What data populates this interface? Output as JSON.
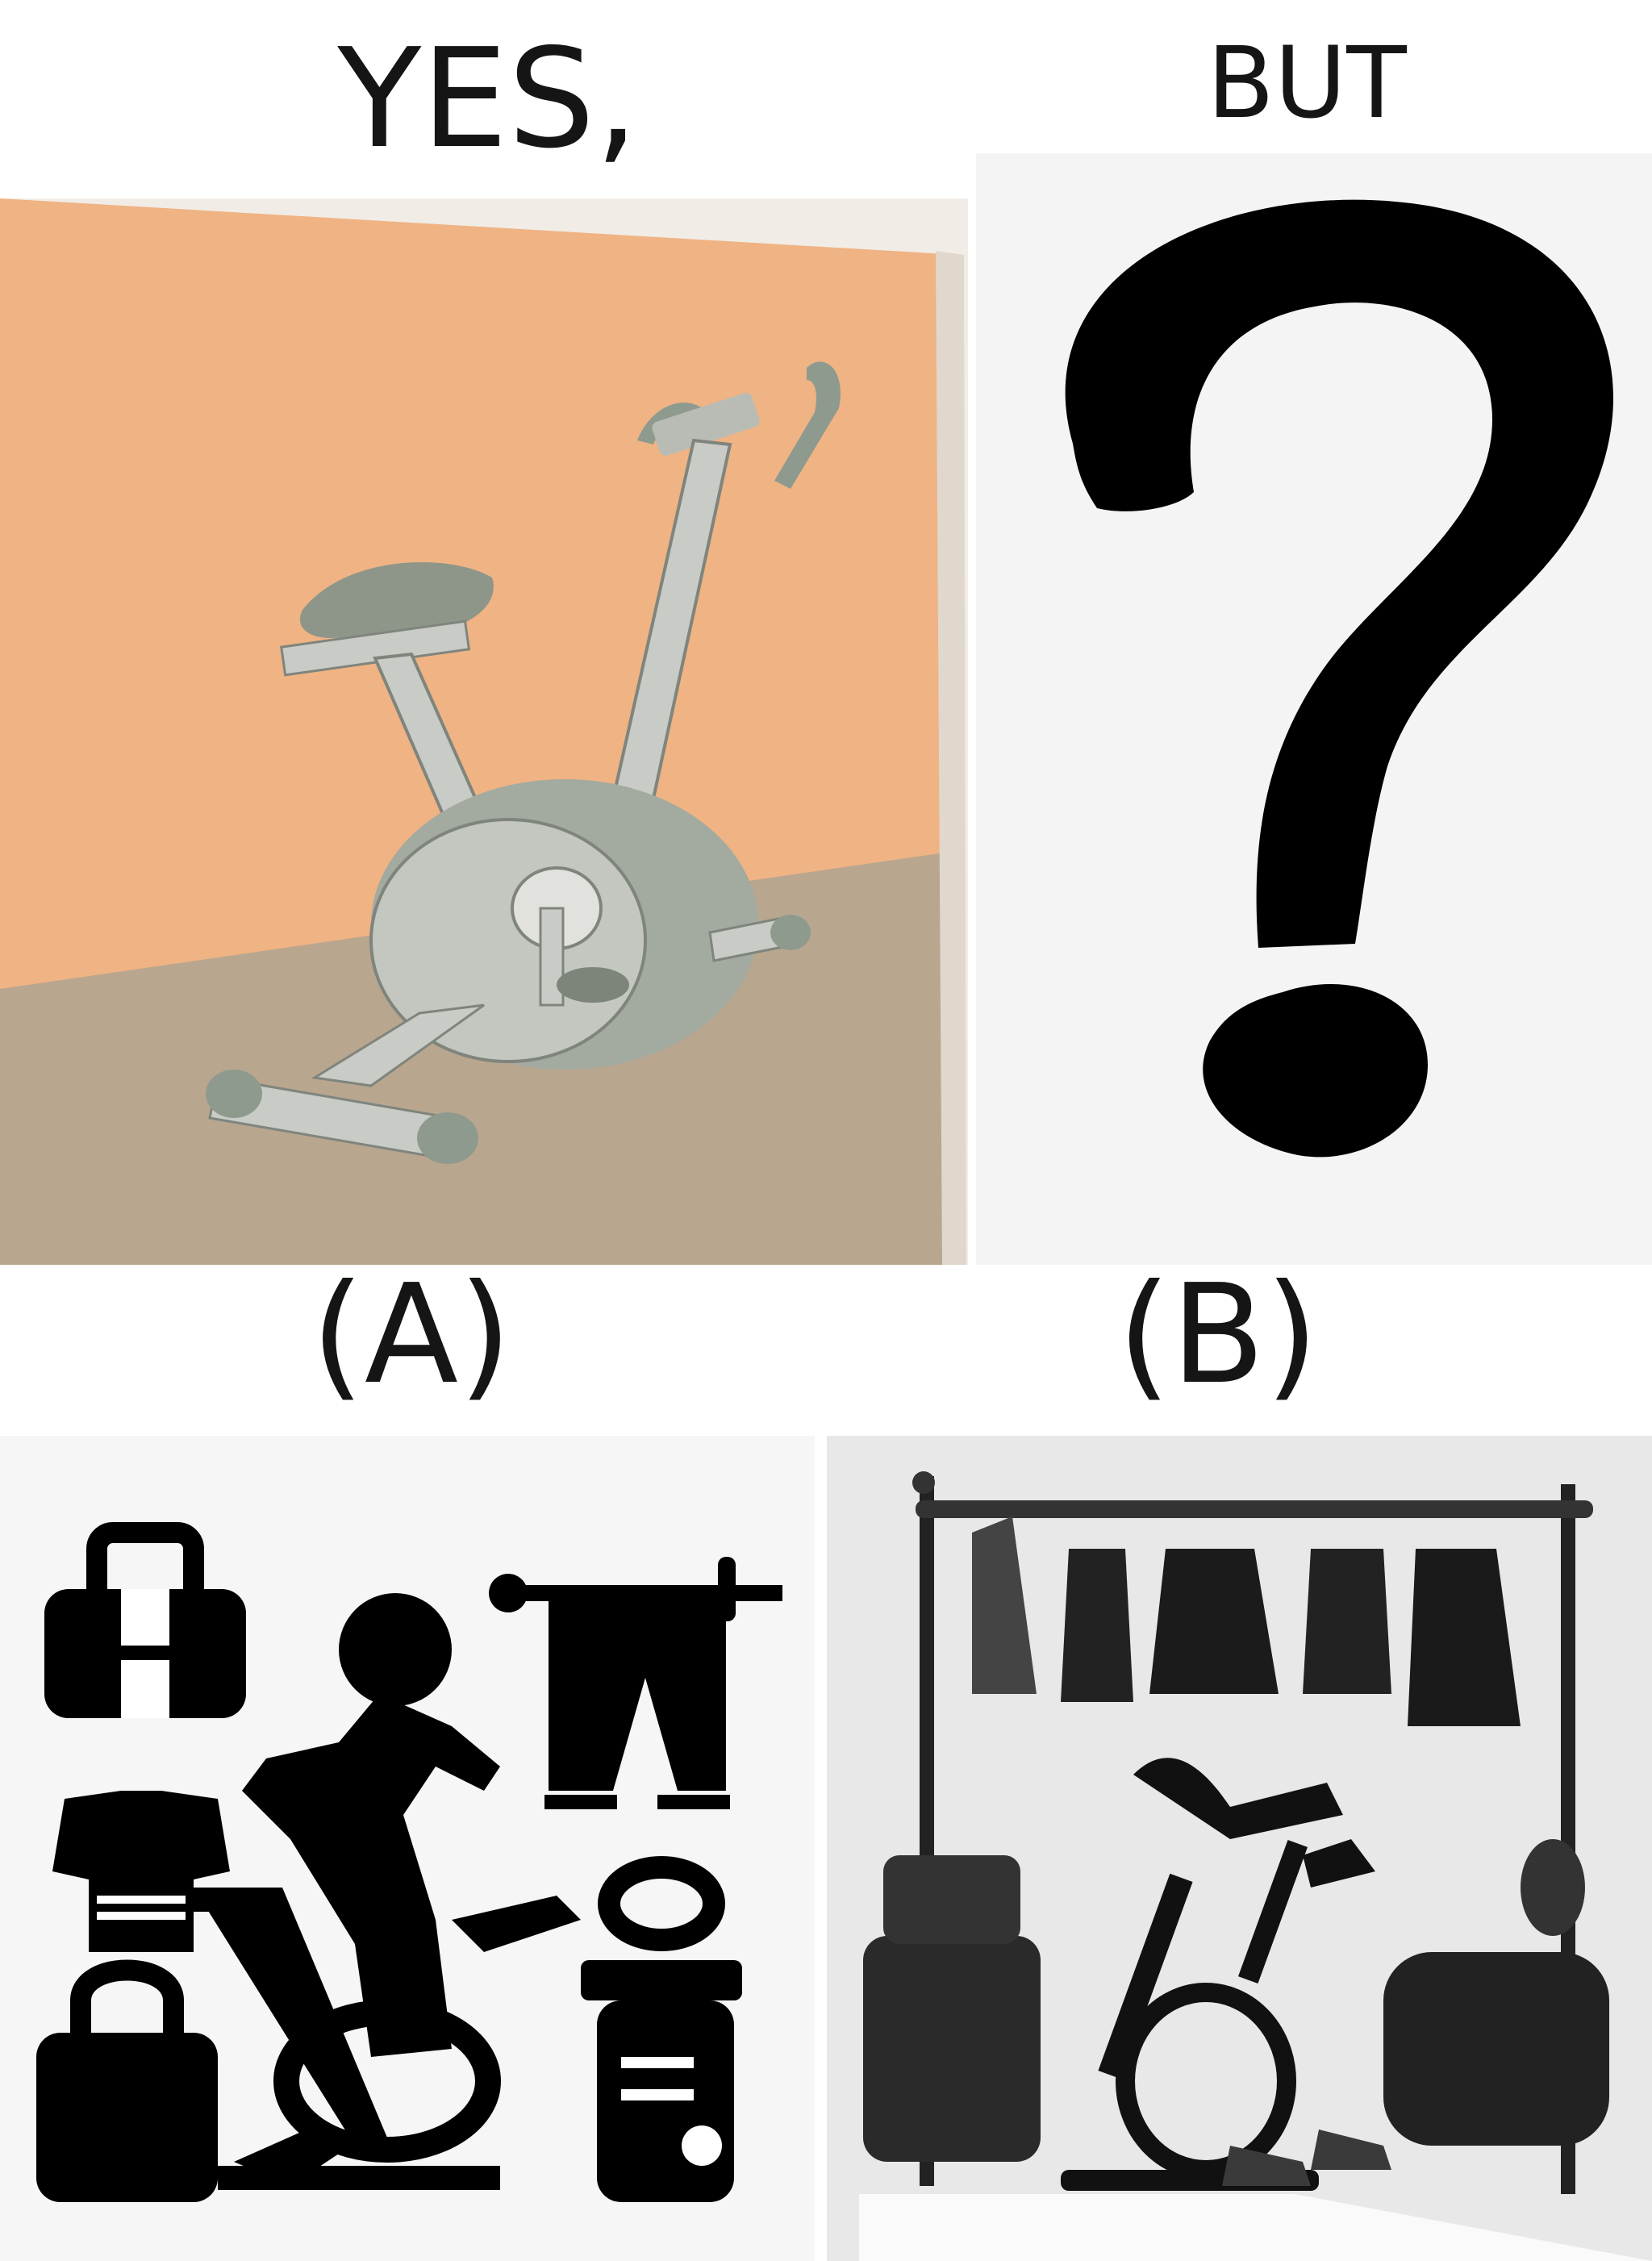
{
  "top_labels": {
    "left": "YES,",
    "right": "BUT"
  },
  "choice_labels": {
    "a": "(A)",
    "b": "(B)"
  },
  "panels": {
    "yes_panel": {
      "subject": "exercise-bike-cartoon",
      "wall_color": "#f0b687",
      "floor_color": "#b8a48c"
    },
    "but_panel": {
      "subject": "question-mark-icon",
      "background": "#f4f4f4"
    },
    "option_a": {
      "subject": "fitness-icon-set",
      "background": "#f6f6f6"
    },
    "option_b": {
      "subject": "gym-clothes-rack-with-exercise-bike",
      "background": "#e8e8e8"
    }
  }
}
